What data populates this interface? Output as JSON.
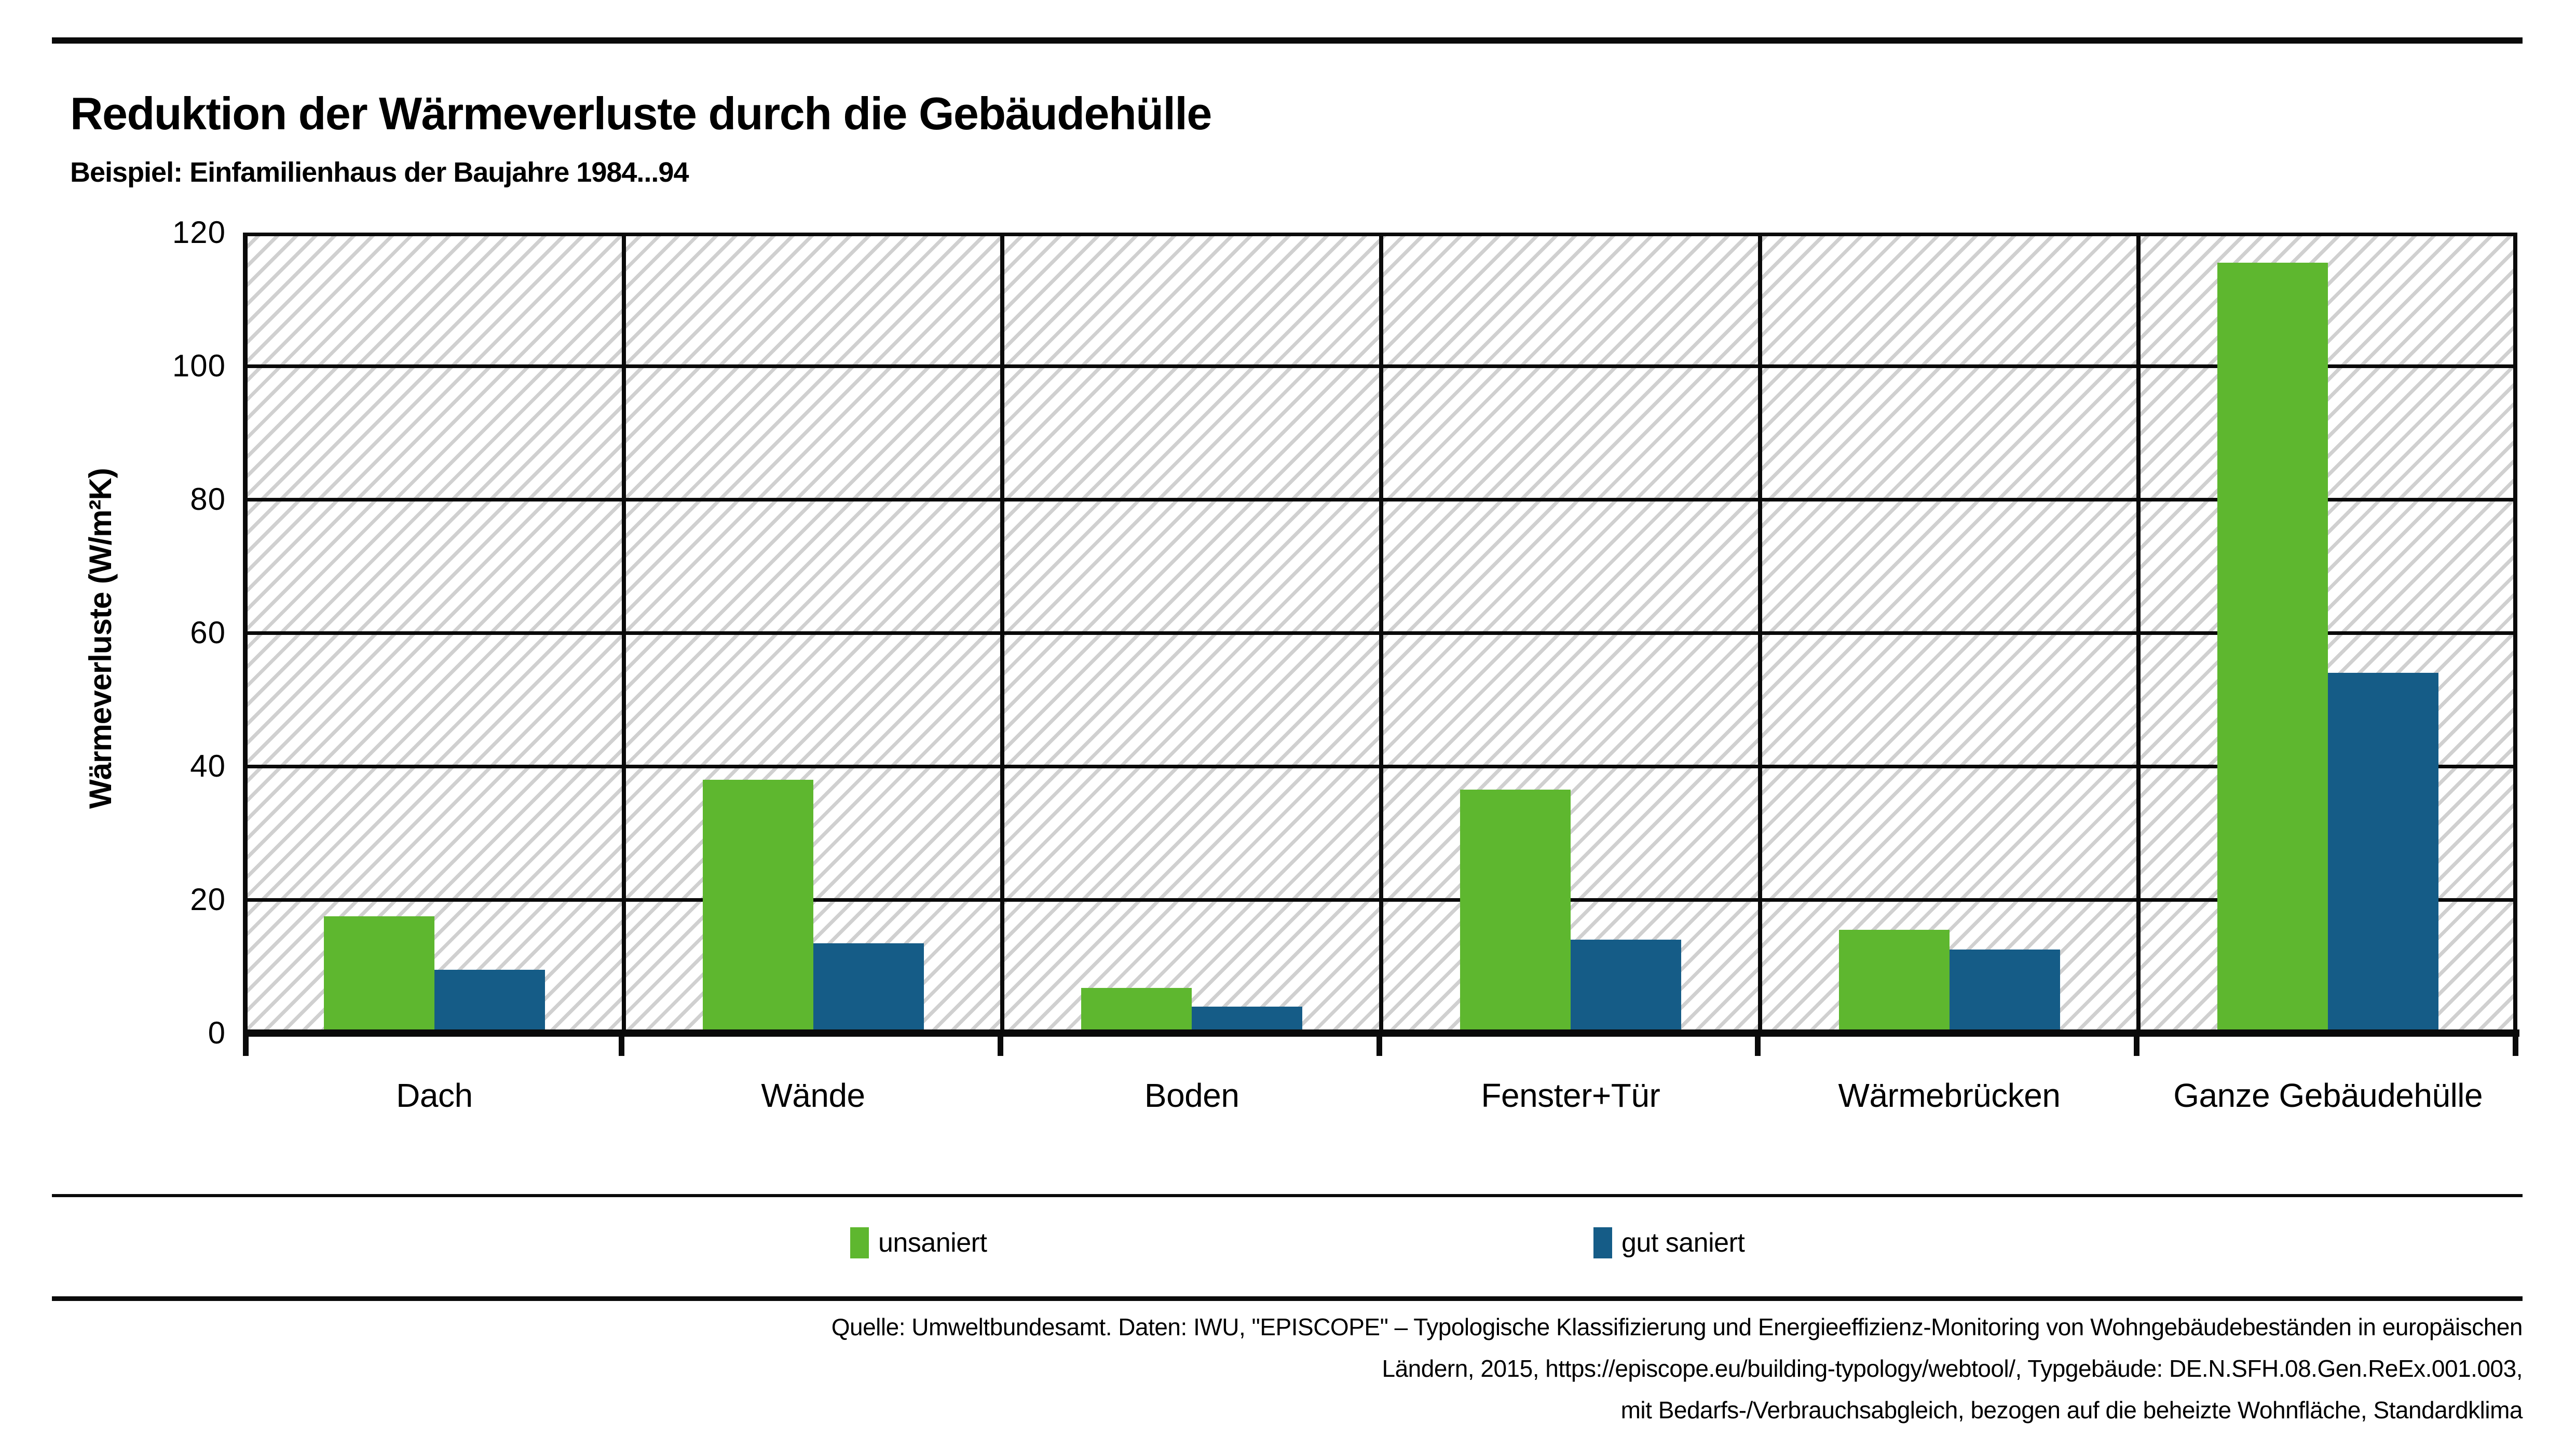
{
  "header": {
    "title": "Reduktion der Wärmeverluste durch die Gebäudehülle",
    "subtitle": "Beispiel: Einfamilienhaus der Baujahre 1984...94"
  },
  "chart_data": {
    "type": "bar",
    "title": "Reduktion der Wärmeverluste durch die Gebäudehülle",
    "subtitle": "Beispiel: Einfamilienhaus der Baujahre 1984...94",
    "categories": [
      "Dach",
      "Wände",
      "Boden",
      "Fenster+Tür",
      "Wärmebrücken",
      "Ganze Gebäudehülle"
    ],
    "series": [
      {
        "name": "unsaniert",
        "color": "#5EB72F",
        "values": [
          17.5,
          38,
          6.8,
          36.5,
          15.5,
          115.5
        ]
      },
      {
        "name": "gut saniert",
        "color": "#155C87",
        "values": [
          9.5,
          13.5,
          4,
          14,
          12.5,
          54
        ]
      }
    ],
    "xlabel": "",
    "ylabel": "Wärmeverluste (W/m²K)",
    "ylim": [
      0,
      120
    ],
    "yticks": [
      0,
      20,
      40,
      60,
      80,
      100,
      120
    ],
    "grid": "horizontal gridlines and vertical category dividers, hatched plot background",
    "legend_position": "bottom"
  },
  "footer": {
    "source_lines": [
      "Quelle: Umweltbundesamt. Daten: IWU, \"EPISCOPE\" – Typologische Klassifizierung und Energieeffizienz-Monitoring von Wohngebäudebeständen in europäischen",
      "Ländern, 2015, https://episcope.eu/building-typology/webtool/, Typgebäude: DE.N.SFH.08.Gen.ReEx.001.003,",
      "mit Bedarfs-/Verbrauchsabgleich, bezogen auf die beheizte Wohnfläche, Standardklima"
    ]
  }
}
